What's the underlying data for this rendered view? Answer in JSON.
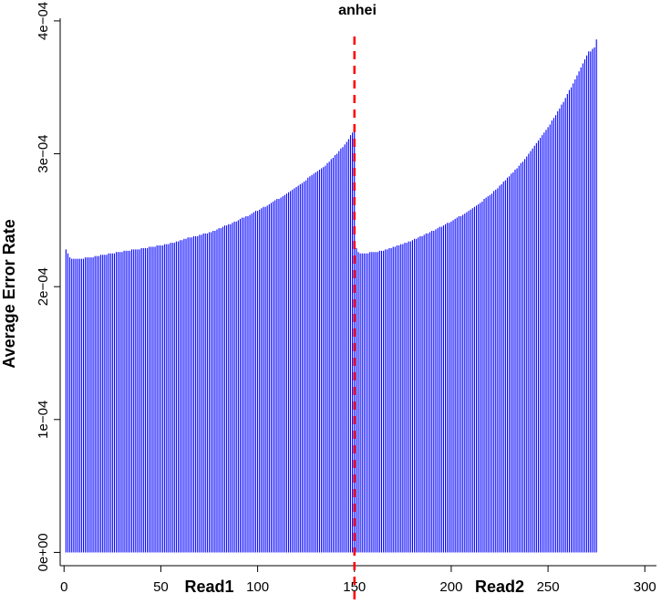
{
  "chart_data": {
    "type": "bar",
    "title": "anhei",
    "xlabel": "",
    "ylabel": "Average Error Rate",
    "xlim": [
      -2,
      306
    ],
    "ylim": [
      -1e-05,
      0.000402
    ],
    "x_ticks": [
      0,
      50,
      100,
      150,
      200,
      250,
      300
    ],
    "x_tick_labels": [
      "0",
      "50",
      "100",
      "150",
      "200",
      "250",
      "300"
    ],
    "y_ticks": [
      0,
      0.0001,
      0.0002,
      0.0003,
      0.0004
    ],
    "y_tick_labels": [
      "0e+00",
      "1e−04",
      "2e−04",
      "3e−04",
      "4e−04"
    ],
    "bar_color": "#0000ff",
    "divider": {
      "x": 150,
      "color": "#ff0000",
      "style": "dashed"
    },
    "read_labels": [
      {
        "text": "Read1",
        "x": 75
      },
      {
        "text": "Read2",
        "x": 225
      }
    ],
    "series": [
      {
        "x_start": 1,
        "values": [
          0.000228,
          0.000225,
          0.000222,
          0.000221,
          0.000221,
          0.000221,
          0.000221,
          0.000221,
          0.000221,
          0.000221,
          0.000222,
          0.000222,
          0.000222,
          0.000222,
          0.000222,
          0.000223,
          0.000223,
          0.000223,
          0.000224,
          0.000224,
          0.000224,
          0.000224,
          0.000225,
          0.000225,
          0.000225,
          0.000225,
          0.000226,
          0.000226,
          0.000226,
          0.000226,
          0.000227,
          0.000227,
          0.000227,
          0.000227,
          0.000228,
          0.000228,
          0.000228,
          0.000228,
          0.000228,
          0.000229,
          0.000229,
          0.000229,
          0.000229,
          0.00023,
          0.00023,
          0.00023,
          0.00023,
          0.000231,
          0.000231,
          0.000231,
          0.000231,
          0.000232,
          0.000232,
          0.000232,
          0.000233,
          0.000233,
          0.000233,
          0.000234,
          0.000234,
          0.000235,
          0.000235,
          0.000236,
          0.000236,
          0.000237,
          0.000237,
          0.000237,
          0.000238,
          0.000238,
          0.000238,
          0.000239,
          0.000239,
          0.00024,
          0.00024,
          0.00024,
          0.000241,
          0.000241,
          0.000242,
          0.000242,
          0.000243,
          0.000244,
          0.000244,
          0.000245,
          0.000246,
          0.000246,
          0.000247,
          0.000247,
          0.000248,
          0.000249,
          0.000249,
          0.00025,
          0.000251,
          0.000252,
          0.000252,
          0.000253,
          0.000253,
          0.000254,
          0.000255,
          0.000256,
          0.000257,
          0.000257,
          0.000258,
          0.000259,
          0.00026,
          0.00026,
          0.000261,
          0.000262,
          0.000263,
          0.000264,
          0.000265,
          0.000266,
          0.000266,
          0.000267,
          0.000268,
          0.000269,
          0.00027,
          0.000271,
          0.000272,
          0.000273,
          0.000274,
          0.000275,
          0.000276,
          0.000277,
          0.000278,
          0.000279,
          0.00028,
          0.000282,
          0.000283,
          0.000284,
          0.000285,
          0.000286,
          0.000287,
          0.000288,
          0.000289,
          0.00029,
          0.000291,
          0.000293,
          0.000294,
          0.000296,
          0.000297,
          0.000299,
          0.0003,
          0.000302,
          0.000304,
          0.000305,
          0.000307,
          0.000309,
          0.000311,
          0.000314,
          0.000316,
          0.00032,
          0.000229,
          0.000226,
          0.000225,
          0.000225,
          0.000225,
          0.000225,
          0.000225,
          0.000226,
          0.000226,
          0.000226,
          0.000226,
          0.000226,
          0.000227,
          0.000227,
          0.000227,
          0.000228,
          0.000228,
          0.000229,
          0.000229,
          0.00023,
          0.00023,
          0.000231,
          0.000231,
          0.000232,
          0.000232,
          0.000233,
          0.000233,
          0.000234,
          0.000234,
          0.000235,
          0.000236,
          0.000236,
          0.000237,
          0.000238,
          0.000238,
          0.000239,
          0.00024,
          0.00024,
          0.000241,
          0.000242,
          0.000242,
          0.000243,
          0.000244,
          0.000245,
          0.000245,
          0.000246,
          0.000247,
          0.000248,
          0.000248,
          0.000249,
          0.00025,
          0.000251,
          0.000252,
          0.000253,
          0.000253,
          0.000254,
          0.000255,
          0.000256,
          0.000257,
          0.000258,
          0.000259,
          0.00026,
          0.000261,
          0.000262,
          0.000263,
          0.000264,
          0.000266,
          0.000267,
          0.000268,
          0.000269,
          0.00027,
          0.000272,
          0.000273,
          0.000274,
          0.000276,
          0.000277,
          0.000279,
          0.00028,
          0.000282,
          0.000283,
          0.000285,
          0.000286,
          0.000288,
          0.000289,
          0.000291,
          0.000293,
          0.000294,
          0.000296,
          0.000298,
          0.0003,
          0.000302,
          0.000304,
          0.000306,
          0.000308,
          0.00031,
          0.000312,
          0.000314,
          0.000316,
          0.000318,
          0.00032,
          0.000322,
          0.000325,
          0.000327,
          0.000329,
          0.000332,
          0.000334,
          0.000337,
          0.000339,
          0.000342,
          0.000345,
          0.000348,
          0.00035,
          0.000353,
          0.000356,
          0.000359,
          0.000362,
          0.000365,
          0.000368,
          0.000371,
          0.000374,
          0.000377,
          0.000377,
          0.000379,
          0.00038,
          0.000386
        ]
      }
    ],
    "grid": false,
    "legend": "none"
  }
}
